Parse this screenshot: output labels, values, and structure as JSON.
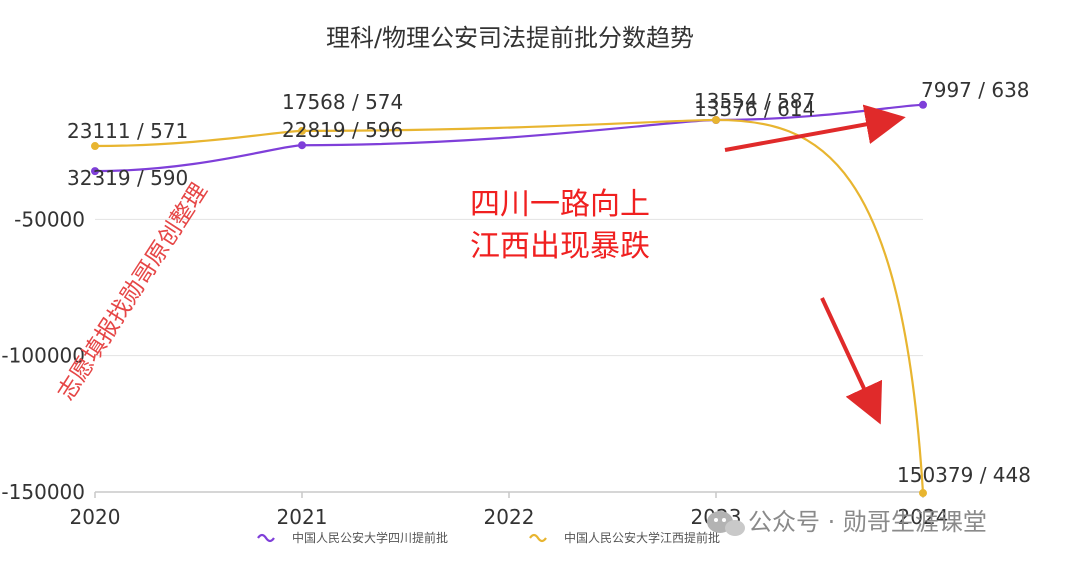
{
  "chart_data": {
    "type": "line",
    "title": "理科/物理公安司法提前批分数趋势",
    "categories": [
      "2020",
      "2021",
      "2022",
      "2023",
      "2024"
    ],
    "y_ticks": [
      -50000,
      -100000,
      -150000
    ],
    "ylim": [
      -150000,
      0
    ],
    "grid": true,
    "legend_position": "bottom",
    "series": [
      {
        "name": "中国人民公安大学四川提前批",
        "color": "#7f3fd9",
        "points": [
          {
            "x": "2020",
            "rank": 32319,
            "score": 590,
            "label": "32319 / 590"
          },
          {
            "x": "2021",
            "rank": 22819,
            "score": 596,
            "label": "22819 / 596"
          },
          {
            "x": "2023",
            "rank": 13576,
            "score": 614,
            "label": "13576 / 614"
          },
          {
            "x": "2024",
            "rank": 7997,
            "score": 638,
            "label": "7997 / 638"
          }
        ]
      },
      {
        "name": "中国人民公安大学江西提前批",
        "color": "#e8b530",
        "points": [
          {
            "x": "2020",
            "rank": 23111,
            "score": 571,
            "label": "23111 / 571"
          },
          {
            "x": "2021",
            "rank": 17568,
            "score": 574,
            "label": "17568 / 574"
          },
          {
            "x": "2023",
            "rank": 13554,
            "score": 587,
            "label": "13554 / 587"
          },
          {
            "x": "2024",
            "rank": 150379,
            "score": 448,
            "label": "150379 / 448"
          }
        ]
      }
    ],
    "annotations": [
      "四川一路向上",
      "江西出现暴跌"
    ]
  },
  "watermark": "志愿填报找勋哥原创整理",
  "footer_watermark": "公众号 · 勋哥生涯课堂",
  "colors": {
    "annotation": "#f02020",
    "arrow": "#e02a2a"
  },
  "icons": {
    "watermark": "wechat-icon"
  }
}
